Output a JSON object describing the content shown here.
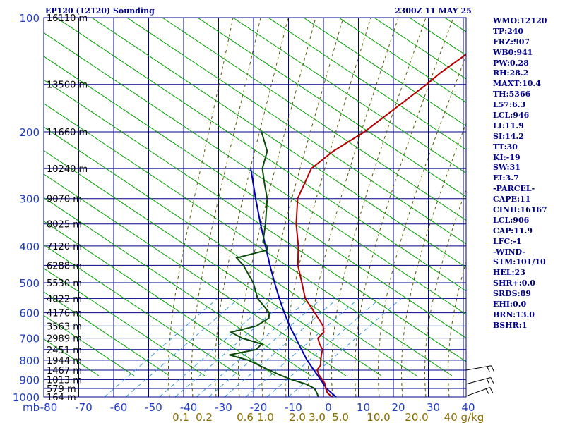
{
  "header": {
    "title": "EP120 (12120) Sounding",
    "datetime": "2300Z 11 MAY 25"
  },
  "panel": [
    "WMO:12120",
    "TP:240",
    "FRZ:907",
    "WB0:941",
    "PW:0.28",
    "RH:28.2",
    "MAXT:10.4",
    "TH:5366",
    "L57:6.3",
    "LCL:946",
    "LI:11.9",
    "SI:14.2",
    "TT:30",
    "KI:-19",
    "SW:31",
    "EI:3.7",
    "-PARCEL-",
    "CAPE:11",
    "CINH:16167",
    "LCL:906",
    "CAP:11.9",
    "LFC:-1",
    "-WIND-",
    "STM:101/10",
    "HEL:23",
    "SHR+:0.0",
    "SRDS:89",
    "EHI:0.0",
    "BRN:13.0",
    "BSHR:1"
  ],
  "colors": {
    "grid": "#00008b",
    "dry_adiabat": "#00a000",
    "moist_adiabat": "#5a5a00",
    "mixing_ratio": "#3a9bd8",
    "temperature": "#b40000",
    "dewpoint": "#0a4a0a",
    "parcel": "#0000b4",
    "axis_text": "#1e3cc8",
    "mixing_text": "#8a6d00"
  },
  "chart_data": {
    "type": "skew-t",
    "pressure_levels": [
      100,
      200,
      300,
      400,
      500,
      600,
      700,
      800,
      900,
      1000
    ],
    "pressure_labels": [
      "100",
      "200",
      "300",
      "400",
      "500",
      "600",
      "700",
      "800",
      "900",
      "1000"
    ],
    "temperature_ticks": [
      -80,
      -70,
      -60,
      -50,
      -40,
      -30,
      -20,
      -10,
      0,
      10,
      20,
      30,
      40
    ],
    "temperature_tick_labels": [
      "-80",
      "-70",
      "-60",
      "-50",
      "-40",
      "-30",
      "-20",
      "-10",
      "0",
      "10",
      "20",
      "30",
      "40"
    ],
    "pressure_unit": "mb",
    "height_labels": [
      {
        "p": 100,
        "label": "16110 m"
      },
      {
        "p": 150,
        "label": "13500 m"
      },
      {
        "p": 200,
        "label": "11660 m"
      },
      {
        "p": 250,
        "label": "10240 m"
      },
      {
        "p": 300,
        "label": "9070 m"
      },
      {
        "p": 350,
        "label": "8025 m"
      },
      {
        "p": 400,
        "label": "7120 m"
      },
      {
        "p": 450,
        "label": "6288 m"
      },
      {
        "p": 500,
        "label": "5530 m"
      },
      {
        "p": 550,
        "label": "4822 m"
      },
      {
        "p": 600,
        "label": "4176 m"
      },
      {
        "p": 650,
        "label": "3563 m"
      },
      {
        "p": 700,
        "label": "2989 m"
      },
      {
        "p": 750,
        "label": "2451 m"
      },
      {
        "p": 800,
        "label": "1944 m"
      },
      {
        "p": 850,
        "label": "1467 m"
      },
      {
        "p": 900,
        "label": "1013 m"
      },
      {
        "p": 950,
        "label": "579 m"
      },
      {
        "p": 1000,
        "label": "164 m"
      }
    ],
    "mixing_ratio_labels": [
      "0.1",
      "0.2",
      "0.6",
      "1.0",
      "2.0",
      "3.0",
      "5.0",
      "10.0",
      "20.0",
      "40 g/kg"
    ],
    "mixing_ratio_values": [
      0.1,
      0.2,
      0.6,
      1.0,
      2.0,
      3.0,
      5.0,
      10.0,
      20.0,
      40.0
    ],
    "temperature_profile": [
      {
        "p": 1010,
        "t": 1.9
      },
      {
        "p": 1000,
        "t": 0.8
      },
      {
        "p": 975,
        "t": -1.6
      },
      {
        "p": 950,
        "t": -3.2
      },
      {
        "p": 925,
        "t": -4.5
      },
      {
        "p": 900,
        "t": -6.5
      },
      {
        "p": 875,
        "t": -8.7
      },
      {
        "p": 850,
        "t": -10.5
      },
      {
        "p": 825,
        "t": -10.8
      },
      {
        "p": 800,
        "t": -12.1
      },
      {
        "p": 775,
        "t": -13.3
      },
      {
        "p": 750,
        "t": -14.4
      },
      {
        "p": 725,
        "t": -16.7
      },
      {
        "p": 700,
        "t": -18.7
      },
      {
        "p": 675,
        "t": -18.6
      },
      {
        "p": 650,
        "t": -20.4
      },
      {
        "p": 600,
        "t": -26.3
      },
      {
        "p": 550,
        "t": -32.8
      },
      {
        "p": 500,
        "t": -37.9
      },
      {
        "p": 450,
        "t": -43.6
      },
      {
        "p": 400,
        "t": -48.6
      },
      {
        "p": 350,
        "t": -55.0
      },
      {
        "p": 300,
        "t": -61.3
      },
      {
        "p": 250,
        "t": -65.3
      },
      {
        "p": 225,
        "t": -63.6
      },
      {
        "p": 200,
        "t": -59.8
      },
      {
        "p": 150,
        "t": -54.5
      },
      {
        "p": 140,
        "t": -53.6
      },
      {
        "p": 125,
        "t": -51.1
      },
      {
        "p": 115,
        "t": -49.6
      },
      {
        "p": 100,
        "t": -47.5
      }
    ],
    "dewpoint_profile": [
      {
        "p": 1010,
        "t": -2.4
      },
      {
        "p": 1000,
        "t": -3.1
      },
      {
        "p": 980,
        "t": -4.3
      },
      {
        "p": 950,
        "t": -6.4
      },
      {
        "p": 925,
        "t": -10.0
      },
      {
        "p": 900,
        "t": -15.3
      },
      {
        "p": 875,
        "t": -19.9
      },
      {
        "p": 850,
        "t": -24.2
      },
      {
        "p": 800,
        "t": -32.8
      },
      {
        "p": 775,
        "t": -39.6
      },
      {
        "p": 750,
        "t": -33.4
      },
      {
        "p": 725,
        "t": -33.2
      },
      {
        "p": 700,
        "t": -40.4
      },
      {
        "p": 675,
        "t": -45.1
      },
      {
        "p": 650,
        "t": -39.5
      },
      {
        "p": 620,
        "t": -38.0
      },
      {
        "p": 600,
        "t": -39.3
      },
      {
        "p": 550,
        "t": -46.4
      },
      {
        "p": 500,
        "t": -51.8
      },
      {
        "p": 450,
        "t": -59.2
      },
      {
        "p": 430,
        "t": -63.1
      },
      {
        "p": 410,
        "t": -56.5
      },
      {
        "p": 400,
        "t": -57.5
      },
      {
        "p": 390,
        "t": -59.8
      },
      {
        "p": 350,
        "t": -63.8
      },
      {
        "p": 300,
        "t": -70.0
      },
      {
        "p": 275,
        "t": -74.5
      },
      {
        "p": 250,
        "t": -79.3
      },
      {
        "p": 225,
        "t": -82.5
      },
      {
        "p": 200,
        "t": -89.2
      }
    ],
    "parcel_profile": [
      {
        "p": 1000,
        "t": 2.0
      },
      {
        "p": 950,
        "t": -3.0
      },
      {
        "p": 900,
        "t": -7.0
      },
      {
        "p": 850,
        "t": -11.4
      },
      {
        "p": 800,
        "t": -16.0
      },
      {
        "p": 750,
        "t": -20.4
      },
      {
        "p": 700,
        "t": -25.0
      },
      {
        "p": 650,
        "t": -30.0
      },
      {
        "p": 600,
        "t": -35.0
      },
      {
        "p": 550,
        "t": -40.2
      },
      {
        "p": 500,
        "t": -45.7
      },
      {
        "p": 450,
        "t": -51.6
      },
      {
        "p": 400,
        "t": -58.0
      },
      {
        "p": 350,
        "t": -65.2
      },
      {
        "p": 300,
        "t": -73.3
      },
      {
        "p": 250,
        "t": -82.6
      }
    ],
    "wind_barbs": [
      {
        "p": 850,
        "dir": 280,
        "speed": 10
      },
      {
        "p": 925,
        "dir": 285,
        "speed": 10
      },
      {
        "p": 995,
        "dir": 290,
        "speed": 10
      }
    ]
  }
}
